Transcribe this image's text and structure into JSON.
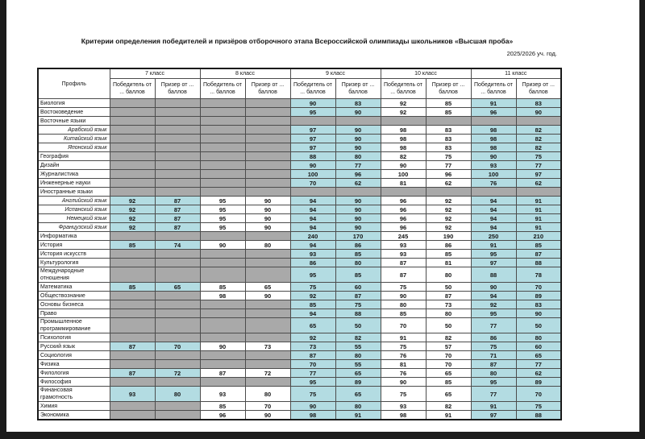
{
  "page": {
    "title": "Критерии определения победителей и призёров отборочного этапа Всероссийской олимпиады школьников «Высшая проба»",
    "school_year": "2025/2026 уч. год."
  },
  "table": {
    "profile_header": "Профиль",
    "grade_groups": [
      "7 класс",
      "8 класс",
      "9 класс",
      "10 класс",
      "11 класс"
    ],
    "winner_header": "Победитель от ... баллов",
    "prize_header": "Призер от ... баллов",
    "colors": {
      "highlight": "#b3dce2",
      "empty": "#a9a9a9"
    },
    "rows": [
      {
        "label": "Биология",
        "sub": false,
        "values": [
          null,
          null,
          null,
          null,
          90,
          83,
          92,
          85,
          91,
          83
        ]
      },
      {
        "label": "Востоковедение",
        "sub": false,
        "values": [
          null,
          null,
          null,
          null,
          95,
          90,
          92,
          85,
          96,
          90
        ]
      },
      {
        "label": "Восточные языки",
        "sub": false,
        "values": [
          null,
          null,
          null,
          null,
          null,
          null,
          null,
          null,
          null,
          null
        ]
      },
      {
        "label": "Арабский язык",
        "sub": true,
        "values": [
          null,
          null,
          null,
          null,
          97,
          90,
          98,
          83,
          98,
          82
        ]
      },
      {
        "label": "Китайский язык",
        "sub": true,
        "values": [
          null,
          null,
          null,
          null,
          97,
          90,
          98,
          83,
          98,
          82
        ]
      },
      {
        "label": "Японский язык",
        "sub": true,
        "values": [
          null,
          null,
          null,
          null,
          97,
          90,
          98,
          83,
          98,
          82
        ]
      },
      {
        "label": "География",
        "sub": false,
        "values": [
          null,
          null,
          null,
          null,
          88,
          80,
          82,
          75,
          90,
          75
        ]
      },
      {
        "label": "Дизайн",
        "sub": false,
        "values": [
          null,
          null,
          null,
          null,
          90,
          77,
          90,
          77,
          93,
          77
        ]
      },
      {
        "label": "Журналистика",
        "sub": false,
        "values": [
          null,
          null,
          null,
          null,
          100,
          96,
          100,
          96,
          100,
          97
        ]
      },
      {
        "label": "Инженерные науки",
        "sub": false,
        "values": [
          null,
          null,
          null,
          null,
          70,
          62,
          81,
          62,
          76,
          62
        ]
      },
      {
        "label": "Иностранные языки",
        "sub": false,
        "values": [
          null,
          null,
          null,
          null,
          null,
          null,
          null,
          null,
          null,
          null
        ]
      },
      {
        "label": "Английский язык",
        "sub": true,
        "values": [
          92,
          87,
          95,
          90,
          94,
          90,
          96,
          92,
          94,
          91
        ]
      },
      {
        "label": "Испанский язык",
        "sub": true,
        "values": [
          92,
          87,
          95,
          90,
          94,
          90,
          96,
          92,
          94,
          91
        ]
      },
      {
        "label": "Немецкий язык",
        "sub": true,
        "values": [
          92,
          87,
          95,
          90,
          94,
          90,
          96,
          92,
          94,
          91
        ]
      },
      {
        "label": "Французский язык",
        "sub": true,
        "values": [
          92,
          87,
          95,
          90,
          94,
          90,
          96,
          92,
          94,
          91
        ]
      },
      {
        "label": "Информатика",
        "sub": false,
        "values": [
          null,
          null,
          null,
          null,
          240,
          170,
          245,
          190,
          250,
          210
        ]
      },
      {
        "label": "История",
        "sub": false,
        "values": [
          85,
          74,
          90,
          80,
          94,
          86,
          93,
          86,
          91,
          85
        ]
      },
      {
        "label": "История искусств",
        "sub": false,
        "values": [
          null,
          null,
          null,
          null,
          93,
          85,
          93,
          85,
          95,
          87
        ]
      },
      {
        "label": "Культурология",
        "sub": false,
        "values": [
          null,
          null,
          null,
          null,
          86,
          80,
          87,
          81,
          97,
          88
        ]
      },
      {
        "label": "Международные\nотношения",
        "sub": false,
        "values": [
          null,
          null,
          null,
          null,
          95,
          85,
          87,
          80,
          88,
          78
        ]
      },
      {
        "label": "Математика",
        "sub": false,
        "values": [
          85,
          65,
          85,
          65,
          75,
          60,
          75,
          50,
          90,
          70
        ]
      },
      {
        "label": "Обществознание",
        "sub": false,
        "values": [
          null,
          null,
          98,
          90,
          92,
          87,
          90,
          87,
          94,
          89
        ]
      },
      {
        "label": "Основы бизнеса",
        "sub": false,
        "values": [
          null,
          null,
          null,
          null,
          85,
          75,
          80,
          73,
          92,
          83
        ]
      },
      {
        "label": "Право",
        "sub": false,
        "values": [
          null,
          null,
          null,
          null,
          94,
          88,
          85,
          80,
          95,
          90
        ]
      },
      {
        "label": "Промышленное\nпрограммирование",
        "sub": false,
        "values": [
          null,
          null,
          null,
          null,
          65,
          50,
          70,
          50,
          77,
          50
        ]
      },
      {
        "label": "Психология",
        "sub": false,
        "values": [
          null,
          null,
          null,
          null,
          92,
          82,
          91,
          82,
          86,
          80
        ]
      },
      {
        "label": "Русский язык",
        "sub": false,
        "values": [
          87,
          70,
          90,
          73,
          73,
          55,
          75,
          57,
          75,
          60
        ]
      },
      {
        "label": "Социология",
        "sub": false,
        "values": [
          null,
          null,
          null,
          null,
          87,
          80,
          76,
          70,
          71,
          65
        ]
      },
      {
        "label": "Физика",
        "sub": false,
        "values": [
          null,
          null,
          null,
          null,
          70,
          55,
          81,
          70,
          87,
          77
        ]
      },
      {
        "label": "Филология",
        "sub": false,
        "values": [
          87,
          72,
          87,
          72,
          77,
          65,
          76,
          65,
          80,
          62
        ]
      },
      {
        "label": "Философия",
        "sub": false,
        "values": [
          null,
          null,
          null,
          null,
          95,
          89,
          90,
          85,
          95,
          89
        ]
      },
      {
        "label": "Финансовая\nграмотность",
        "sub": false,
        "values": [
          93,
          80,
          93,
          80,
          75,
          65,
          75,
          65,
          77,
          70
        ]
      },
      {
        "label": "Химия",
        "sub": false,
        "values": [
          null,
          null,
          85,
          70,
          90,
          80,
          93,
          82,
          91,
          75
        ]
      },
      {
        "label": "Экономика",
        "sub": false,
        "values": [
          null,
          null,
          96,
          90,
          98,
          91,
          98,
          91,
          97,
          88
        ]
      }
    ]
  }
}
